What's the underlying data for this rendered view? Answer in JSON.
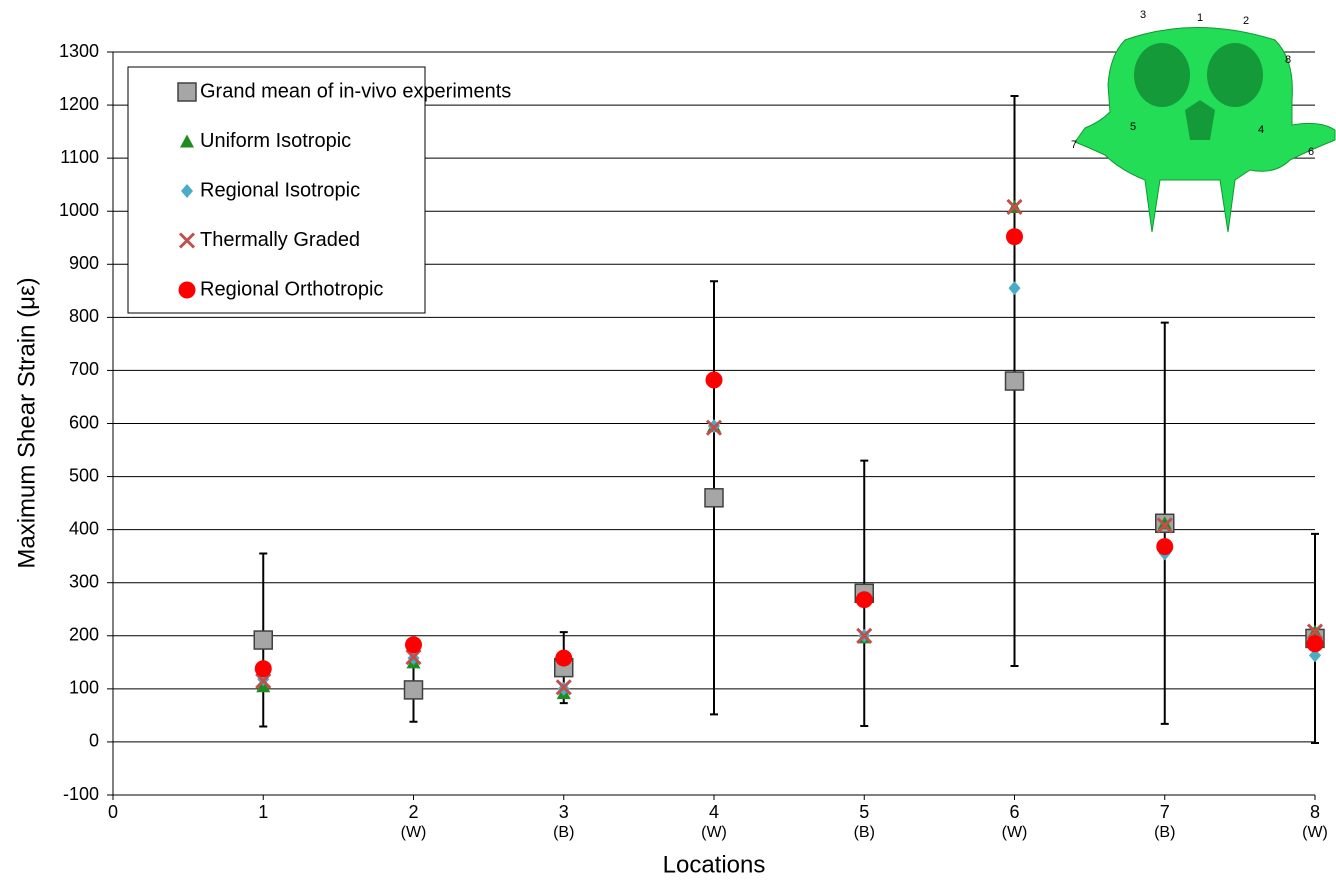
{
  "chart_data": {
    "type": "scatter",
    "y_label": "Maximum Shear Strain (με)",
    "x_label": "Locations",
    "xlim": [
      0,
      8
    ],
    "xticks": [
      0,
      1,
      2,
      3,
      4,
      5,
      6,
      7,
      8
    ],
    "x_sublabels": [
      null,
      null,
      "(W)",
      "(B)",
      "(W)",
      "(B)",
      "(W)",
      "(B)",
      "(W)"
    ],
    "ylim": [
      -100,
      1300
    ],
    "yticks": [
      -100,
      0,
      100,
      200,
      300,
      400,
      500,
      600,
      700,
      800,
      900,
      1000,
      1100,
      1200,
      1300
    ],
    "grid": true,
    "series": [
      {
        "name": "Grand mean of in-vivo experiments",
        "marker": "square",
        "color": "#a6a6a6",
        "x": [
          1,
          2,
          3,
          4,
          5,
          6,
          7,
          8
        ],
        "values": [
          192,
          98,
          140,
          460,
          280,
          680,
          412,
          195
        ],
        "errors": [
          163,
          60,
          67,
          408,
          250,
          537,
          378,
          197
        ]
      },
      {
        "name": "Uniform Isotropic",
        "marker": "triangle",
        "color": "#1e8c1e",
        "x": [
          1,
          2,
          3,
          4,
          5,
          6,
          7,
          8
        ],
        "values": [
          105,
          150,
          92,
          595,
          197,
          1008,
          412,
          208
        ]
      },
      {
        "name": "Regional Isotropic",
        "marker": "diamond",
        "color": "#4bacc6",
        "x": [
          1,
          2,
          3,
          4,
          5,
          6,
          7,
          8
        ],
        "values": [
          118,
          158,
          100,
          595,
          200,
          855,
          355,
          163
        ]
      },
      {
        "name": "Thermally Graded",
        "marker": "cross",
        "color": "#c0504d",
        "x": [
          1,
          2,
          3,
          4,
          5,
          6,
          7,
          8
        ],
        "values": [
          115,
          160,
          103,
          592,
          200,
          1008,
          408,
          208
        ]
      },
      {
        "name": "Regional Orthotropic",
        "marker": "circle",
        "color": "#ff0000",
        "x": [
          1,
          2,
          3,
          4,
          5,
          6,
          7,
          8
        ],
        "values": [
          138,
          183,
          158,
          682,
          268,
          952,
          368,
          185
        ]
      }
    ],
    "inset_labels": [
      "1",
      "2",
      "3",
      "4",
      "5",
      "6",
      "7",
      "8"
    ]
  }
}
